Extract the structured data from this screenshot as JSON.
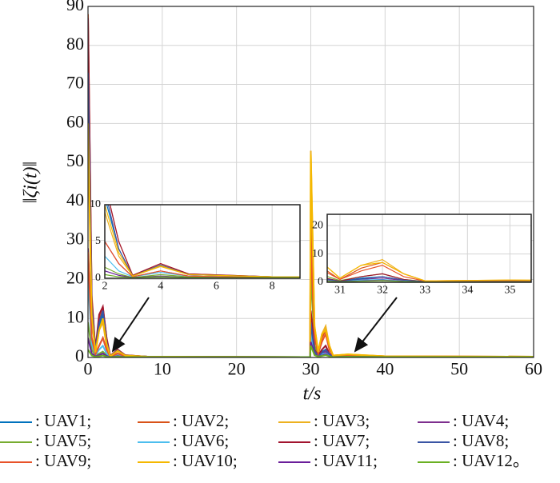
{
  "chart_data": [
    {
      "type": "line",
      "x_label": "t/s",
      "y_label": "‖ζi(t)‖",
      "x": [
        0,
        0.5,
        1,
        1.5,
        2,
        2.5,
        3,
        4,
        5,
        8,
        29.9,
        30,
        30.5,
        31,
        31.5,
        32,
        32.5,
        33,
        35,
        40,
        60
      ],
      "xlim": [
        0,
        60
      ],
      "xticks": [
        0,
        10,
        20,
        30,
        40,
        50,
        60
      ],
      "ylim": [
        0,
        90
      ],
      "yticks": [
        0,
        10,
        20,
        30,
        40,
        50,
        60,
        70,
        80,
        90
      ],
      "grid": true,
      "series": [
        {
          "name": ": UAV1;",
          "color": "#0072bd",
          "values": [
            80,
            14,
            1.5,
            8,
            11,
            4,
            0.3,
            1.8,
            0.5,
            0.2,
            0.1,
            10,
            2,
            0.3,
            1.5,
            2,
            0.8,
            0.2,
            0.3,
            0.2,
            0.1
          ]
        },
        {
          "name": ": UAV2;",
          "color": "#d95319",
          "values": [
            88,
            16,
            2,
            10,
            13,
            5,
            0.4,
            2,
            0.6,
            0.2,
            0.1,
            38,
            6,
            1,
            5,
            7,
            3,
            0.5,
            0.7,
            0.3,
            0.2
          ]
        },
        {
          "name": ": UAV3;",
          "color": "#edb120",
          "values": [
            57,
            10,
            1.2,
            7,
            9,
            3,
            0.3,
            1.6,
            0.5,
            0.2,
            0.1,
            53,
            8,
            1.5,
            6,
            8,
            3,
            0.5,
            0.8,
            0.3,
            0.2
          ]
        },
        {
          "name": ": UAV4;",
          "color": "#7e2f8e",
          "values": [
            28,
            5,
            0.8,
            3,
            5,
            2,
            0.2,
            1,
            0.3,
            0.1,
            0.1,
            8,
            1.5,
            0.3,
            1,
            1.5,
            0.6,
            0.2,
            0.3,
            0.2,
            0.1
          ]
        },
        {
          "name": ": UAV5;",
          "color": "#77ac30",
          "values": [
            9,
            2,
            0.5,
            1,
            1.5,
            0.6,
            0.1,
            0.5,
            0.2,
            0.1,
            0.1,
            22,
            3,
            0.6,
            2,
            3,
            1,
            0.3,
            0.4,
            0.2,
            0.1
          ]
        },
        {
          "name": ": UAV6;",
          "color": "#4dbeee",
          "values": [
            20,
            3.5,
            0.6,
            2,
            3,
            1,
            0.2,
            0.8,
            0.3,
            0.1,
            0.1,
            6,
            1,
            0.2,
            0.8,
            1,
            0.4,
            0.1,
            0.2,
            0.1,
            0.1
          ]
        },
        {
          "name": ": UAV7;",
          "color": "#a2142f",
          "values": [
            87,
            15,
            2,
            11,
            13,
            5,
            0.4,
            2,
            0.6,
            0.2,
            0.1,
            12,
            2,
            0.4,
            2,
            3,
            1,
            0.2,
            0.3,
            0.2,
            0.1
          ]
        },
        {
          "name": ": UAV8;",
          "color": "#3a55a4",
          "values": [
            73,
            13,
            1.5,
            9,
            12,
            4,
            0.3,
            1.8,
            0.5,
            0.2,
            0.1,
            9,
            1.6,
            0.3,
            1.2,
            2,
            0.8,
            0.2,
            0.3,
            0.2,
            0.1
          ]
        },
        {
          "name": ": UAV9;",
          "color": "#e8532a",
          "values": [
            27,
            5,
            0.8,
            3,
            5,
            2,
            0.2,
            1,
            0.3,
            0.1,
            0.1,
            30,
            5,
            1,
            4,
            6,
            2,
            0.4,
            0.6,
            0.3,
            0.2
          ]
        },
        {
          "name": ": UAV10;",
          "color": "#f5b800",
          "values": [
            60,
            11,
            1.3,
            7,
            10,
            3.5,
            0.3,
            1.7,
            0.5,
            0.2,
            0.1,
            52,
            8,
            1.4,
            6,
            7,
            3,
            0.5,
            0.8,
            0.3,
            0.2
          ]
        },
        {
          "name": ": UAV11;",
          "color": "#6a1e9a",
          "values": [
            5,
            1,
            0.3,
            0.6,
            1,
            0.4,
            0.1,
            0.3,
            0.1,
            0.1,
            0.1,
            4,
            0.8,
            0.2,
            0.5,
            0.8,
            0.3,
            0.1,
            0.2,
            0.1,
            0.1
          ]
        },
        {
          "name": ": UAV12。",
          "color": "#6ab023",
          "values": [
            2,
            0.5,
            0.2,
            0.3,
            0.5,
            0.2,
            0.1,
            0.2,
            0.1,
            0.1,
            0.1,
            3,
            0.6,
            0.2,
            0.4,
            0.6,
            0.3,
            0.1,
            0.2,
            0.1,
            0.1
          ]
        }
      ]
    },
    {
      "type": "line",
      "xlim": [
        2,
        9
      ],
      "xticks": [
        2,
        4,
        6,
        8
      ],
      "ylim": [
        0,
        10
      ],
      "yticks": [
        0,
        5,
        10
      ],
      "grid": true
    },
    {
      "type": "line",
      "xlim": [
        30.7,
        35.5
      ],
      "xticks": [
        31,
        32,
        33,
        34,
        35
      ],
      "ylim": [
        0,
        24
      ],
      "yticks": [
        0,
        10,
        20
      ],
      "grid": true
    }
  ]
}
